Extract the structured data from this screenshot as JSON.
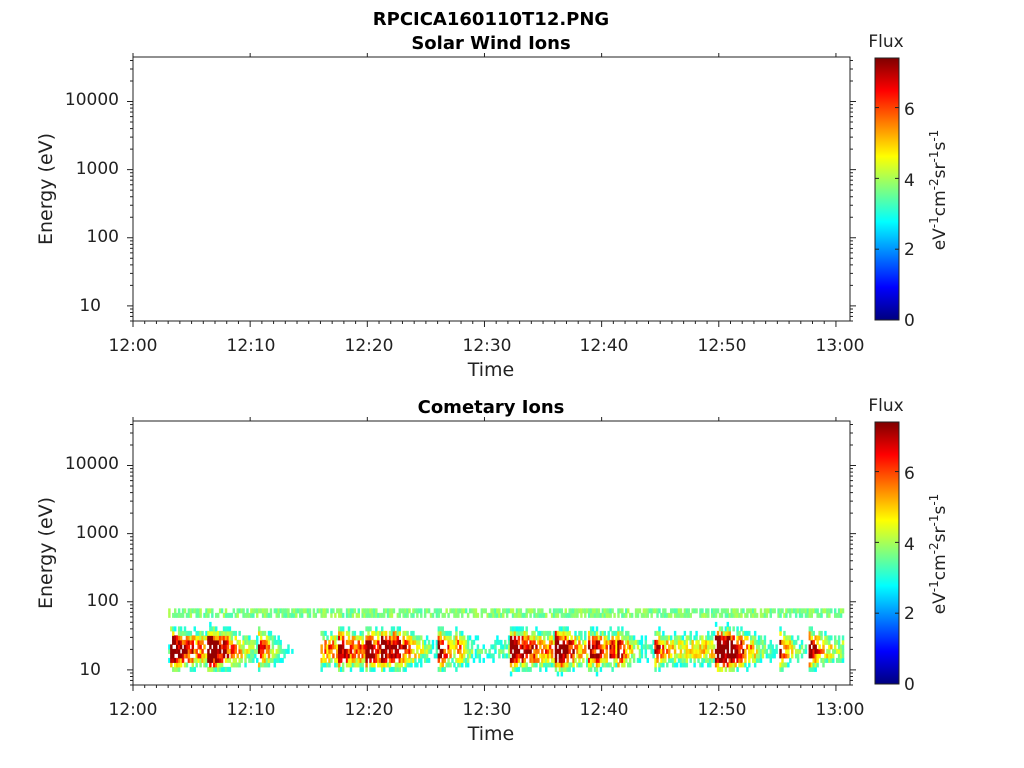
{
  "figure_title": "RPCICA160110T12.PNG",
  "chart_data": [
    {
      "type": "heatmap",
      "title": "Solar Wind Ions",
      "xlabel": "Time",
      "ylabel": "Energy (eV)",
      "y_scale": "log",
      "ylim": [
        6,
        45000
      ],
      "x_ticks": [
        "12:00",
        "12:10",
        "12:20",
        "12:30",
        "12:40",
        "12:50",
        "13:00"
      ],
      "y_ticks": [
        "10",
        "100",
        "1000",
        "10000"
      ],
      "colorbar": {
        "label": "Flux",
        "units": "eV-1cm-2sr-1s-1",
        "ticks": [
          "0",
          "2",
          "4",
          "6"
        ],
        "range": [
          0,
          7.4
        ]
      },
      "data_description": "no visible flux"
    },
    {
      "type": "heatmap",
      "title": "Cometary Ions",
      "xlabel": "Time",
      "ylabel": "Energy (eV)",
      "y_scale": "log",
      "ylim": [
        6,
        45000
      ],
      "x_ticks": [
        "12:00",
        "12:10",
        "12:20",
        "12:30",
        "12:40",
        "12:50",
        "13:00"
      ],
      "y_ticks": [
        "10",
        "100",
        "1000",
        "10000"
      ],
      "colorbar": {
        "label": "Flux",
        "units": "eV-1cm-2sr-1s-1",
        "ticks": [
          "0",
          "2",
          "4",
          "6"
        ],
        "range": [
          0,
          7.4
        ]
      },
      "data_start_time": "12:03",
      "data_end_time": "13:00",
      "energy_band_eV": [
        7,
        80
      ],
      "peak_energy_eV": 20,
      "peak_flux": 6.5
    }
  ]
}
